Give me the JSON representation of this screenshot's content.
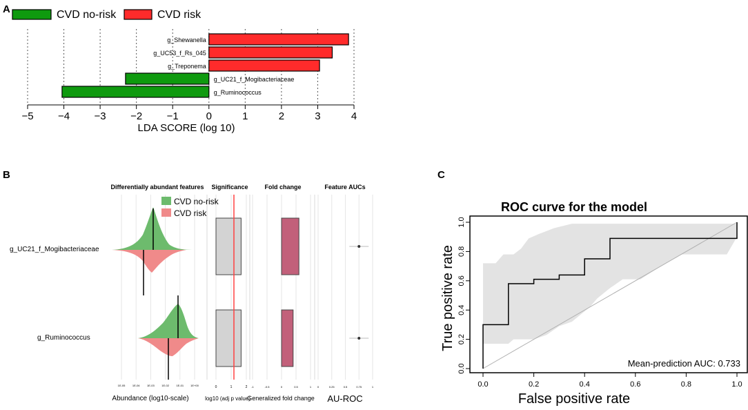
{
  "panels": {
    "a": "A",
    "b": "B",
    "c": "C"
  },
  "chart_data": [
    {
      "type": "bar",
      "orientation": "horizontal",
      "panel": "A",
      "legend": [
        {
          "name": "CVD no-risk",
          "color": "#0f9a0f"
        },
        {
          "name": "CVD risk",
          "color": "#ff2b2b"
        }
      ],
      "categories": [
        "g_Shewanella",
        "g_UC53_f_Rs_045",
        "g_Treponema",
        "g_UC21_f_Mogibacteriaceae",
        "g_Ruminococcus"
      ],
      "values": [
        3.85,
        3.4,
        3.05,
        -2.3,
        -4.05
      ],
      "xlim": [
        -5,
        4
      ],
      "xticks": [
        -5,
        -4,
        -3,
        -2,
        -1,
        0,
        1,
        2,
        3,
        4
      ],
      "xtick_labels": [
        "−5",
        "−4",
        "−3",
        "−2",
        "−1",
        "0",
        "1",
        "2",
        "3",
        "4"
      ],
      "xlabel": "LDA SCORE (log 10)",
      "ylabel": "",
      "grid": "vertical dotted"
    },
    {
      "type": "violin",
      "panel": "B",
      "headers": {
        "features": "Differentially abundant features",
        "significance": "Significance",
        "fold_change": "Fold change",
        "auc": "Feature AUCs"
      },
      "legend": [
        {
          "name": "CVD no-risk",
          "color": "#6dbb6d"
        },
        {
          "name": "CVD risk",
          "color": "#f08a8a"
        }
      ],
      "features": [
        "g_UC21_f_Mogibacteriaceae",
        "g_Ruminococcus"
      ],
      "abundance_ticks": [
        "1E-05",
        "1E-04",
        "1E-03",
        "1E-02",
        "1E-01",
        "1E+00"
      ],
      "significance_ticks": [
        "0",
        "1",
        "2"
      ],
      "fold_ticks": [
        "-1",
        "-0.5",
        "0",
        "0.5",
        "1"
      ],
      "auc_ticks": [
        "0",
        "0.25",
        "0.5",
        "0.75",
        "1"
      ],
      "significance_values": [
        1.2,
        1.2
      ],
      "fold_change_values": [
        0.6,
        0.4
      ],
      "auc_values": [
        0.75,
        0.75
      ],
      "xlabels": {
        "abundance": "Abundance (log10-scale)",
        "significance": "log10 (adj p value)",
        "fold_change": "Generalized fold change",
        "auc": "AU-ROC"
      }
    },
    {
      "type": "line",
      "panel": "C",
      "title": "ROC curve for the model",
      "xlabel": "False positive rate",
      "ylabel": "True positive rate",
      "xlim": [
        0,
        1
      ],
      "ylim": [
        0,
        1
      ],
      "xticks": [
        "0.0",
        "0.2",
        "0.4",
        "0.6",
        "0.8",
        "1.0"
      ],
      "yticks": [
        "0.0",
        "0.2",
        "0.4",
        "0.6",
        "0.8",
        "1.0"
      ],
      "annotation": "Mean-prediction AUC: 0.733",
      "roc_points": [
        [
          0,
          0
        ],
        [
          0,
          0.3
        ],
        [
          0.1,
          0.3
        ],
        [
          0.1,
          0.58
        ],
        [
          0.2,
          0.58
        ],
        [
          0.2,
          0.61
        ],
        [
          0.3,
          0.61
        ],
        [
          0.3,
          0.64
        ],
        [
          0.4,
          0.64
        ],
        [
          0.4,
          0.75
        ],
        [
          0.5,
          0.75
        ],
        [
          0.5,
          0.89
        ],
        [
          1,
          0.89
        ],
        [
          1,
          1
        ]
      ],
      "band_upper": [
        [
          0,
          0.72
        ],
        [
          0.05,
          0.72
        ],
        [
          0.08,
          0.78
        ],
        [
          0.12,
          0.78
        ],
        [
          0.15,
          0.82
        ],
        [
          0.18,
          0.89
        ],
        [
          0.22,
          0.92
        ],
        [
          0.28,
          0.96
        ],
        [
          0.35,
          0.99
        ],
        [
          1,
          0.99
        ]
      ],
      "band_lower": [
        [
          1,
          0.9
        ],
        [
          0.96,
          0.78
        ],
        [
          0.78,
          0.78
        ],
        [
          0.7,
          0.7
        ],
        [
          0.62,
          0.61
        ],
        [
          0.55,
          0.61
        ],
        [
          0.5,
          0.55
        ],
        [
          0.45,
          0.48
        ],
        [
          0.42,
          0.42
        ],
        [
          0.35,
          0.32
        ],
        [
          0.3,
          0.29
        ],
        [
          0.25,
          0.23
        ],
        [
          0.2,
          0.2
        ],
        [
          0.12,
          0.2
        ],
        [
          0.1,
          0.17
        ],
        [
          0.05,
          0.17
        ],
        [
          0,
          0.17
        ]
      ],
      "diagonal": [
        [
          0,
          0
        ],
        [
          1,
          1
        ]
      ]
    }
  ]
}
